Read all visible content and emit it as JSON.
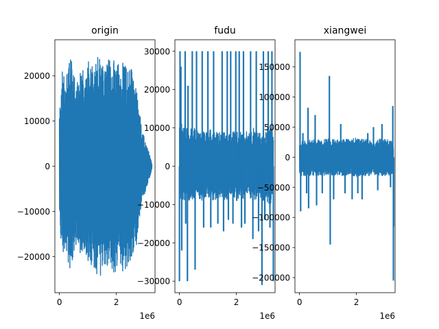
{
  "figure": {
    "background": "#ffffff",
    "line_color": "#1f77b4"
  },
  "chart_data": [
    {
      "type": "line",
      "title": "origin",
      "xlabel": "",
      "ylabel": "",
      "x_offset_label": "1e6",
      "xlim": [
        -0.16,
        3.36
      ],
      "ylim": [
        -28000,
        28000
      ],
      "xticks": [
        {
          "value": 0,
          "label": "0"
        },
        {
          "value": 2,
          "label": "2"
        }
      ],
      "yticks": [
        {
          "value": -20000,
          "label": "−20000"
        },
        {
          "value": -10000,
          "label": "−10000"
        },
        {
          "value": 0,
          "label": "0"
        },
        {
          "value": 10000,
          "label": "10000"
        },
        {
          "value": 20000,
          "label": "20000"
        }
      ],
      "envelope": [
        [
          0.0,
          12000,
          -12000
        ],
        [
          0.1,
          21000,
          -20000
        ],
        [
          0.2,
          19000,
          -18000
        ],
        [
          0.3,
          22000,
          -22000
        ],
        [
          0.4,
          24000,
          -23000
        ],
        [
          0.5,
          21000,
          -20000
        ],
        [
          0.6,
          18000,
          -17000
        ],
        [
          0.7,
          20000,
          -19000
        ],
        [
          0.8,
          22000,
          -21000
        ],
        [
          0.9,
          19000,
          -18000
        ],
        [
          1.0,
          23000,
          -22000
        ],
        [
          1.1,
          24000,
          -24000
        ],
        [
          1.2,
          22000,
          -22000
        ],
        [
          1.3,
          25000,
          -24000
        ],
        [
          1.4,
          24000,
          -24000
        ],
        [
          1.5,
          23000,
          -25000
        ],
        [
          1.6,
          22000,
          -22000
        ],
        [
          1.7,
          24000,
          -23000
        ],
        [
          1.8,
          23000,
          -22000
        ],
        [
          1.9,
          24000,
          -24000
        ],
        [
          2.0,
          22000,
          -23000
        ],
        [
          2.1,
          23000,
          -22000
        ],
        [
          2.2,
          24000,
          -24000
        ],
        [
          2.3,
          23000,
          -23000
        ],
        [
          2.4,
          22000,
          -22000
        ],
        [
          2.5,
          23000,
          -22000
        ],
        [
          2.6,
          20000,
          -20000
        ],
        [
          2.7,
          19000,
          -18000
        ],
        [
          2.8,
          13000,
          -12000
        ],
        [
          2.9,
          9000,
          -8000
        ],
        [
          3.0,
          6000,
          -6000
        ],
        [
          3.1,
          4000,
          -4000
        ],
        [
          3.2,
          2000,
          -2000
        ],
        [
          3.25,
          500,
          -500
        ]
      ]
    },
    {
      "type": "line",
      "title": "fudu",
      "xlabel": "",
      "ylabel": "",
      "x_offset_label": "1e6",
      "xlim": [
        -0.16,
        3.36
      ],
      "ylim": [
        -33000,
        33000
      ],
      "xticks": [
        {
          "value": 0,
          "label": "0"
        },
        {
          "value": 2,
          "label": "2"
        }
      ],
      "yticks": [
        {
          "value": -30000,
          "label": "−30000"
        },
        {
          "value": -20000,
          "label": "−20000"
        },
        {
          "value": -10000,
          "label": "−10000"
        },
        {
          "value": 0,
          "label": "0"
        },
        {
          "value": 10000,
          "label": "10000"
        },
        {
          "value": 20000,
          "label": "20000"
        },
        {
          "value": 30000,
          "label": "30000"
        }
      ],
      "envelope": [
        [
          0.0,
          12000,
          -10000
        ],
        [
          0.2,
          11000,
          -9000
        ],
        [
          0.4,
          10000,
          -9000
        ],
        [
          0.6,
          10000,
          -8000
        ],
        [
          0.8,
          9000,
          -9000
        ],
        [
          1.0,
          10000,
          -8000
        ],
        [
          1.2,
          9000,
          -9000
        ],
        [
          1.4,
          9000,
          -8000
        ],
        [
          1.6,
          9000,
          -9000
        ],
        [
          1.8,
          9000,
          -8000
        ],
        [
          2.0,
          9000,
          -9000
        ],
        [
          2.2,
          9000,
          -9000
        ],
        [
          2.4,
          9000,
          -8000
        ],
        [
          2.6,
          10000,
          -9000
        ],
        [
          2.8,
          9000,
          -9000
        ],
        [
          3.0,
          9000,
          -9000
        ],
        [
          3.2,
          10000,
          -10000
        ],
        [
          3.3,
          9000,
          -8000
        ]
      ],
      "spikes": [
        [
          0.0,
          -30000
        ],
        [
          0.02,
          30000
        ],
        [
          0.05,
          26000
        ],
        [
          0.08,
          -22000
        ],
        [
          0.2,
          30000
        ],
        [
          0.22,
          -15000
        ],
        [
          0.28,
          -30000
        ],
        [
          0.3,
          21000
        ],
        [
          0.45,
          30000
        ],
        [
          0.55,
          -27000
        ],
        [
          0.6,
          30000
        ],
        [
          0.8,
          30000
        ],
        [
          0.85,
          -16000
        ],
        [
          1.0,
          30000
        ],
        [
          1.1,
          -16000
        ],
        [
          1.2,
          30000
        ],
        [
          1.35,
          -15000
        ],
        [
          1.5,
          30000
        ],
        [
          1.55,
          -17000
        ],
        [
          1.68,
          30000
        ],
        [
          1.72,
          -14000
        ],
        [
          1.8,
          30000
        ],
        [
          1.88,
          -15000
        ],
        [
          1.98,
          30000
        ],
        [
          2.1,
          30000
        ],
        [
          2.18,
          -16000
        ],
        [
          2.25,
          30000
        ],
        [
          2.3,
          -15000
        ],
        [
          2.5,
          30000
        ],
        [
          2.58,
          -19000
        ],
        [
          2.7,
          30000
        ],
        [
          2.78,
          -17000
        ],
        [
          2.9,
          -31000
        ],
        [
          2.95,
          30000
        ],
        [
          3.0,
          -14000
        ],
        [
          3.12,
          30000
        ],
        [
          3.18,
          -16000
        ],
        [
          3.25,
          30000
        ],
        [
          3.3,
          -30000
        ]
      ]
    },
    {
      "type": "line",
      "title": "xiangwei",
      "xlabel": "",
      "ylabel": "",
      "x_offset_label": "1e6",
      "xlim": [
        -0.16,
        3.36
      ],
      "ylim": [
        -225000,
        195000
      ],
      "xticks": [
        {
          "value": 0,
          "label": "0"
        },
        {
          "value": 2,
          "label": "2"
        }
      ],
      "yticks": [
        {
          "value": -200000,
          "label": "−200000"
        },
        {
          "value": -150000,
          "label": "−150000"
        },
        {
          "value": -100000,
          "label": "−100000"
        },
        {
          "value": -50000,
          "label": "−50000"
        },
        {
          "value": 0,
          "label": "0"
        },
        {
          "value": 50000,
          "label": "50000"
        },
        {
          "value": 100000,
          "label": "100000"
        },
        {
          "value": 150000,
          "label": "150000"
        }
      ],
      "envelope": [
        [
          0.0,
          25000,
          -30000
        ],
        [
          0.2,
          30000,
          -32000
        ],
        [
          0.4,
          28000,
          -30000
        ],
        [
          0.6,
          30000,
          -32000
        ],
        [
          0.8,
          28000,
          -30000
        ],
        [
          1.0,
          32000,
          -33000
        ],
        [
          1.2,
          30000,
          -30000
        ],
        [
          1.4,
          28000,
          -30000
        ],
        [
          1.6,
          30000,
          -32000
        ],
        [
          1.8,
          30000,
          -30000
        ],
        [
          2.0,
          32000,
          -33000
        ],
        [
          2.2,
          30000,
          -30000
        ],
        [
          2.4,
          30000,
          -32000
        ],
        [
          2.6,
          28000,
          -30000
        ],
        [
          2.8,
          30000,
          -30000
        ],
        [
          3.0,
          30000,
          -32000
        ],
        [
          3.2,
          28000,
          -30000
        ],
        [
          3.3,
          22000,
          -25000
        ]
      ],
      "spikes": [
        [
          0.02,
          175000
        ],
        [
          0.04,
          -90000
        ],
        [
          0.12,
          40000
        ],
        [
          0.25,
          -60000
        ],
        [
          0.3,
          82000
        ],
        [
          0.32,
          -85000
        ],
        [
          0.55,
          70000
        ],
        [
          0.6,
          -80000
        ],
        [
          0.8,
          -60000
        ],
        [
          1.05,
          135000
        ],
        [
          1.08,
          -145000
        ],
        [
          1.2,
          -70000
        ],
        [
          1.45,
          55000
        ],
        [
          1.6,
          -60000
        ],
        [
          1.85,
          -70000
        ],
        [
          2.05,
          -60000
        ],
        [
          2.2,
          -70000
        ],
        [
          2.4,
          40000
        ],
        [
          2.6,
          50000
        ],
        [
          2.75,
          -55000
        ],
        [
          2.9,
          55000
        ],
        [
          3.2,
          -50000
        ],
        [
          3.28,
          85000
        ],
        [
          3.3,
          -205000
        ],
        [
          3.31,
          -115000
        ]
      ]
    }
  ]
}
